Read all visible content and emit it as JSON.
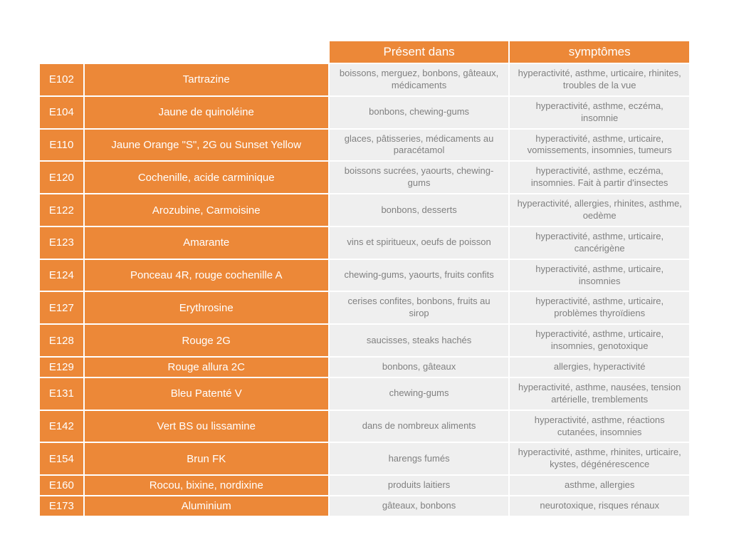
{
  "table": {
    "colors": {
      "orange": "#ec8838",
      "cell_bg": "#efefef",
      "cell_text": "#808080",
      "white": "#ffffff"
    },
    "header": {
      "present": "Présent dans",
      "symptoms": "symptômes"
    },
    "rows": [
      {
        "code": "E102",
        "name": "Tartrazine",
        "present": "boissons, merguez, bonbons, gâteaux, médicaments",
        "symptoms": "hyperactivité, asthme, urticaire, rhinites, troubles de la vue"
      },
      {
        "code": "E104",
        "name": "Jaune de quinoléine",
        "present": "bonbons, chewing-gums",
        "symptoms": "hyperactivité, asthme, eczéma, insomnie"
      },
      {
        "code": "E110",
        "name": "Jaune Orange \"S\", 2G ou Sunset Yellow",
        "present": "glaces, pâtisseries, médicaments au paracétamol",
        "symptoms": "hyperactivité, asthme, urticaire, vomissements, insomnies, tumeurs"
      },
      {
        "code": "E120",
        "name": "Cochenille, acide carminique",
        "present": "boissons sucrées, yaourts, chewing-gums",
        "symptoms": "hyperactivité, asthme, eczéma, insomnies. Fait à partir d'insectes"
      },
      {
        "code": "E122",
        "name": "Arozubine, Carmoisine",
        "present": "bonbons, desserts",
        "symptoms": "hyperactivité, allergies, rhinites, asthme, oedème"
      },
      {
        "code": "E123",
        "name": "Amarante",
        "present": "vins et spiritueux, oeufs de poisson",
        "symptoms": "hyperactivité, asthme, urticaire, cancérigène"
      },
      {
        "code": "E124",
        "name": "Ponceau 4R, rouge cochenille A",
        "present": "chewing-gums, yaourts, fruits confits",
        "symptoms": "hyperactivité, asthme, urticaire, insomnies"
      },
      {
        "code": "E127",
        "name": "Erythrosine",
        "present": "cerises confites, bonbons, fruits au sirop",
        "symptoms": "hyperactivité, asthme, urticaire, problèmes thyroïdiens"
      },
      {
        "code": "E128",
        "name": "Rouge 2G",
        "present": "saucisses, steaks hachés",
        "symptoms": "hyperactivité, asthme, urticaire, insomnies, genotoxique"
      },
      {
        "code": "E129",
        "name": "Rouge allura 2C",
        "present": "bonbons, gâteaux",
        "symptoms": "allergies, hyperactivité"
      },
      {
        "code": "E131",
        "name": "Bleu Patenté V",
        "present": "chewing-gums",
        "symptoms": "hyperactivité, asthme, nausées, tension artérielle, tremblements"
      },
      {
        "code": "E142",
        "name": "Vert BS ou lissamine",
        "present": "dans de nombreux aliments",
        "symptoms": "hyperactivité, asthme, réactions cutanées, insomnies"
      },
      {
        "code": "E154",
        "name": "Brun FK",
        "present": "harengs fumés",
        "symptoms": "hyperactivité, asthme, rhinites, urticaire, kystes, dégénérescence"
      },
      {
        "code": "E160",
        "name": "Rocou, bixine, nordixine",
        "present": "produits laitiers",
        "symptoms": "asthme, allergies"
      },
      {
        "code": "E173",
        "name": "Aluminium",
        "present": "gâteaux, bonbons",
        "symptoms": "neurotoxique, risques rénaux"
      }
    ]
  }
}
